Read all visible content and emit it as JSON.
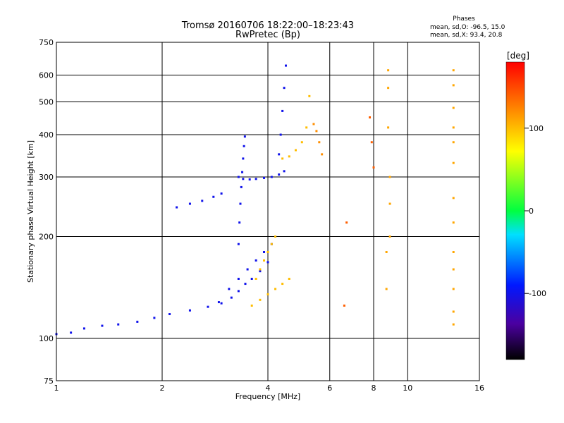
{
  "chart_data": {
    "type": "scatter",
    "title": "Tromsø 20160706 18:22:00–18:23:43",
    "subtitle": "RwPretec (Bp)",
    "phase_box": {
      "title": "Phases",
      "line1": "mean, sd,O: -96.5, 15.0",
      "line2": "mean, sd,X:  93.4, 20.8"
    },
    "xlabel": "Frequency [MHz]",
    "ylabel": "Stationary phase Virtual Height [km]",
    "x_scale": "log",
    "y_scale": "log",
    "xlim": [
      1,
      16
    ],
    "ylim": [
      75,
      750
    ],
    "x_ticks": [
      1,
      2,
      4,
      6,
      8,
      10,
      16
    ],
    "x_ticklabels": [
      "1",
      "2",
      "4",
      "6",
      "8",
      "10",
      "16"
    ],
    "y_ticks": [
      75,
      100,
      200,
      300,
      400,
      500,
      600,
      750
    ],
    "y_ticklabels": [
      "75",
      "100",
      "200",
      "300",
      "400",
      "500",
      "600",
      "750"
    ],
    "grid": true,
    "colorbar": {
      "label": "[deg]",
      "range": [
        -180,
        180
      ],
      "ticks": [
        -100,
        0,
        100
      ],
      "ticklabels": [
        "-100",
        "0",
        "100"
      ]
    },
    "series": [
      {
        "traces": [
          {
            "x": [
              1.0,
              1.1,
              1.2,
              1.35,
              1.5,
              1.7,
              1.9,
              2.1,
              2.4,
              2.7,
              2.95,
              3.15,
              3.3,
              3.45,
              3.6,
              3.8,
              4.0
            ],
            "y": [
              103,
              104,
              107,
              109,
              110,
              112,
              115,
              118,
              121,
              124,
              127,
              132,
              138,
              145,
              150,
              158,
              168
            ],
            "phase": -100
          },
          {
            "x": [
              2.2,
              2.4,
              2.6,
              2.8,
              2.95
            ],
            "y": [
              244,
              250,
              255,
              262,
              268
            ],
            "phase": -100
          },
          {
            "x": [
              3.3,
              3.4,
              3.55,
              3.7,
              3.9,
              4.1,
              4.3,
              4.45
            ],
            "y": [
              300,
              296,
              295,
              296,
              298,
              300,
              305,
              312
            ],
            "phase": -100
          },
          {
            "x": [
              3.3,
              3.32,
              3.34,
              3.36,
              3.38,
              3.4,
              3.42,
              3.44
            ],
            "y": [
              190,
              220,
              250,
              280,
              310,
              340,
              370,
              395
            ],
            "phase": -100
          },
          {
            "x": [
              4.3,
              4.35,
              4.4,
              4.45,
              4.5
            ],
            "y": [
              350,
              400,
              470,
              550,
              640
            ],
            "phase": -100
          },
          {
            "x": [
              2.9,
              3.1,
              3.3,
              3.5,
              3.7,
              3.9,
              4.1
            ],
            "y": [
              128,
              140,
              150,
              160,
              170,
              180,
              190
            ],
            "phase": -100
          },
          {
            "x": [
              3.6,
              3.8,
              4.0,
              4.2,
              4.4,
              4.6
            ],
            "y": [
              125,
              130,
              135,
              140,
              145,
              150
            ],
            "phase": 100
          },
          {
            "x": [
              4.4,
              4.6,
              4.8,
              5.0,
              5.15,
              5.25
            ],
            "y": [
              340,
              345,
              360,
              380,
              420,
              520
            ],
            "phase": 100
          },
          {
            "x": [
              3.7,
              3.8,
              3.9,
              4.0,
              4.1,
              4.2
            ],
            "y": [
              150,
              160,
              170,
              180,
              190,
              200
            ],
            "phase": 100
          },
          {
            "x": [
              5.4,
              5.5,
              5.6,
              5.7
            ],
            "y": [
              430,
              410,
              380,
              350
            ],
            "phase": 120
          },
          {
            "x": [
              8.8,
              8.8,
              8.8,
              8.9,
              8.9,
              8.9,
              8.7,
              8.7
            ],
            "y": [
              620,
              550,
              420,
              300,
              250,
              200,
              180,
              140
            ],
            "phase": 110
          },
          {
            "x": [
              13.5,
              13.5,
              13.5,
              13.5,
              13.5,
              13.5,
              13.5,
              13.5,
              13.5,
              13.5,
              13.5,
              13.5,
              13.5
            ],
            "y": [
              620,
              560,
              480,
              420,
              380,
              330,
              260,
              220,
              180,
              160,
              140,
              120,
              110
            ],
            "phase": 110
          },
          {
            "x": [
              7.8,
              7.9,
              8.0,
              6.7,
              6.6
            ],
            "y": [
              450,
              380,
              320,
              220,
              125
            ],
            "phase": 140
          }
        ]
      }
    ],
    "annotations_phase_colors": {
      "O": -96.5,
      "X": 93.4
    }
  }
}
